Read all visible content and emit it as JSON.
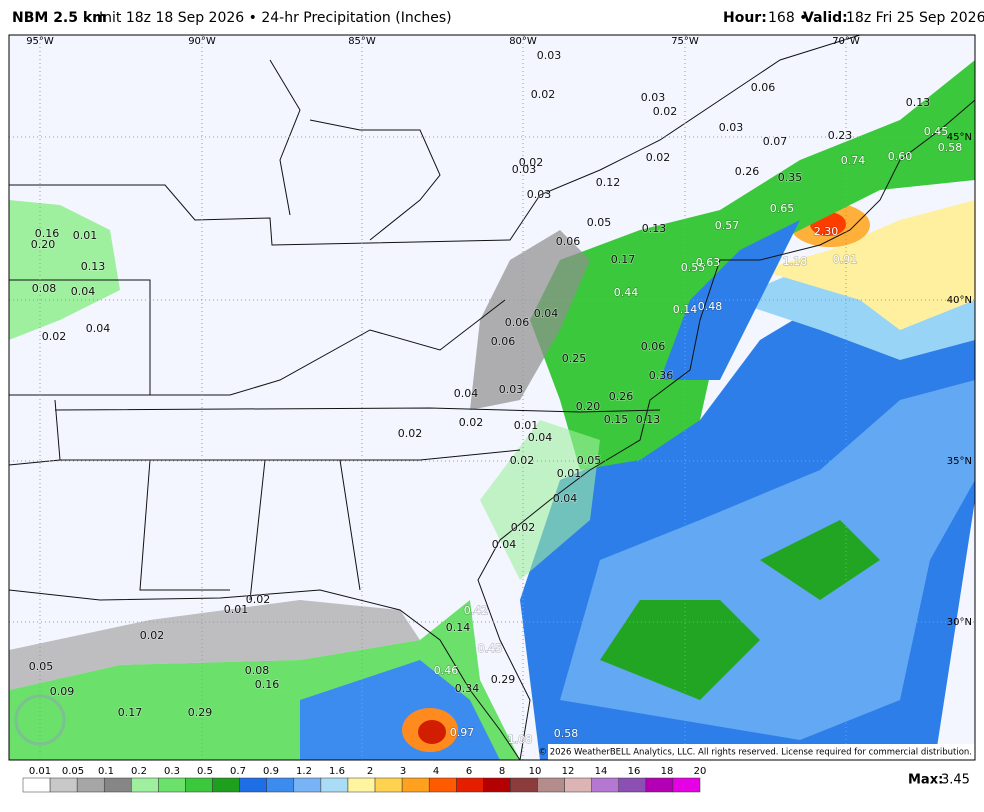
{
  "header": {
    "model": "NBM 2.5 km",
    "info": "Init 18z 18 Sep 2026 • 24-hr Precipitation (Inches)",
    "hour_label": "Hour:",
    "hour": "168 •",
    "valid_label": "Valid:",
    "valid": "18z Fri 25 Sep 2026"
  },
  "map": {
    "longitude_labels": [
      "95°W",
      "90°W",
      "85°W",
      "80°W",
      "75°W",
      "70°W"
    ],
    "latitude_labels": [
      "45°N",
      "40°N",
      "35°N",
      "30°N"
    ],
    "point_values": [
      "0.03",
      "0.02",
      "0.03",
      "0.02",
      "0.06",
      "0.13",
      "0.45",
      "0.58",
      "0.03",
      "0.07",
      "0.23",
      "0.74",
      "0.60",
      "0.02",
      "0.03",
      "0.02",
      "0.26",
      "0.35",
      "0.12",
      "0.03",
      "0.65",
      "0.05",
      "0.13",
      "0.57",
      "2.30",
      "0.16",
      "0.01",
      "0.20",
      "0.06",
      "0.17",
      "0.55",
      "0.63",
      "1.18",
      "0.91",
      "0.13",
      "0.08",
      "0.04",
      "0.44",
      "0.14",
      "0.48",
      "0.06",
      "0.04",
      "0.04",
      "0.02",
      "0.06",
      "0.06",
      "0.25",
      "0.36",
      "0.03",
      "0.04",
      "0.26",
      "0.20",
      "0.15",
      "0.13",
      "0.02",
      "0.01",
      "0.02",
      "0.04",
      "0.02",
      "0.05",
      "0.01",
      "0.04",
      "0.02",
      "0.04",
      "0.02",
      "0.01",
      "0.42",
      "0.14",
      "0.02",
      "0.45",
      "0.05",
      "0.08",
      "0.46",
      "0.16",
      "0.34",
      "0.29",
      "0.09",
      "0.17",
      "0.29",
      "0.97",
      "1.08",
      "0.58"
    ],
    "copyright": "© 2026 WeatherBELL Analytics, LLC. All rights reserved. License required for commercial distribution."
  },
  "colorbar": {
    "labels": [
      "0.01",
      "0.05",
      "0.1",
      "0.2",
      "0.3",
      "0.5",
      "0.7",
      "0.9",
      "1.2",
      "1.6",
      "2",
      "3",
      "4",
      "6",
      "8",
      "10",
      "12",
      "14",
      "16",
      "18",
      "20"
    ],
    "colors": [
      "#ffffff",
      "#c8c8c8",
      "#a6a6a6",
      "#868686",
      "#9ef09e",
      "#6be06b",
      "#3cc83c",
      "#1ea01e",
      "#1e6ee6",
      "#3c8cf0",
      "#78b4f5",
      "#aadcf5",
      "#fff5a0",
      "#ffd250",
      "#ffa01e",
      "#ff5a00",
      "#e61e00",
      "#b40000",
      "#8c3c3c",
      "#b48c8c",
      "#dcb4b4",
      "#b478d2",
      "#8c50b4",
      "#b400b4",
      "#e600e6"
    ]
  },
  "max": {
    "label": "Max:",
    "value": "3.45"
  }
}
